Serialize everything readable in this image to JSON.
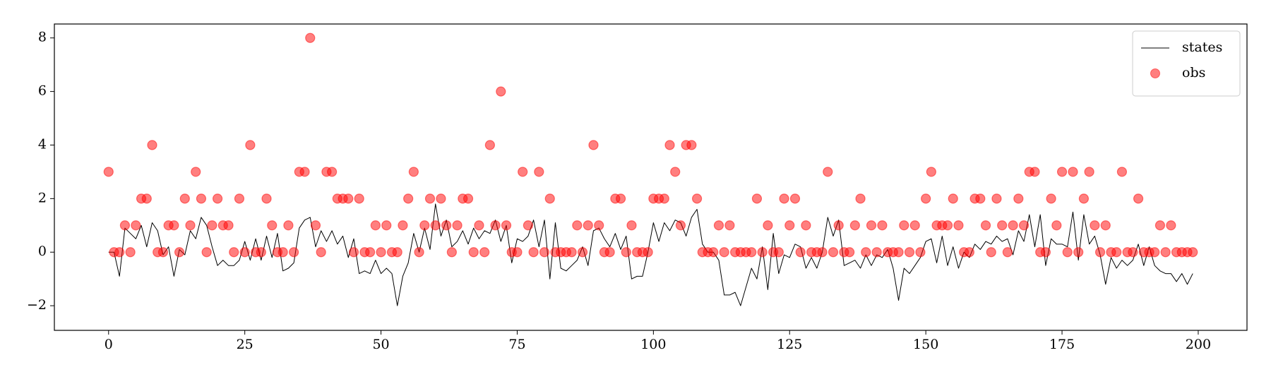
{
  "chart_data": {
    "type": "line",
    "x": [
      0,
      1,
      2,
      3,
      4,
      5,
      6,
      7,
      8,
      9,
      10,
      11,
      12,
      13,
      14,
      15,
      16,
      17,
      18,
      19,
      20,
      21,
      22,
      23,
      24,
      25,
      26,
      27,
      28,
      29,
      30,
      31,
      32,
      33,
      34,
      35,
      36,
      37,
      38,
      39,
      40,
      41,
      42,
      43,
      44,
      45,
      46,
      47,
      48,
      49,
      50,
      51,
      52,
      53,
      54,
      55,
      56,
      57,
      58,
      59,
      60,
      61,
      62,
      63,
      64,
      65,
      66,
      67,
      68,
      69,
      70,
      71,
      72,
      73,
      74,
      75,
      76,
      77,
      78,
      79,
      80,
      81,
      82,
      83,
      84,
      85,
      86,
      87,
      88,
      89,
      90,
      91,
      92,
      93,
      94,
      95,
      96,
      97,
      98,
      99,
      100,
      101,
      102,
      103,
      104,
      105,
      106,
      107,
      108,
      109,
      110,
      111,
      112,
      113,
      114,
      115,
      116,
      117,
      118,
      119,
      120,
      121,
      122,
      123,
      124,
      125,
      126,
      127,
      128,
      129,
      130,
      131,
      132,
      133,
      134,
      135,
      136,
      137,
      138,
      139,
      140,
      141,
      142,
      143,
      144,
      145,
      146,
      147,
      148,
      149,
      150,
      151,
      152,
      153,
      154,
      155,
      156,
      157,
      158,
      159,
      160,
      161,
      162,
      163,
      164,
      165,
      166,
      167,
      168,
      169,
      170,
      171,
      172,
      173,
      174,
      175,
      176,
      177,
      178,
      179,
      180,
      181,
      182,
      183,
      184,
      185,
      186,
      187,
      188,
      189,
      190,
      191,
      192,
      193,
      194,
      195,
      196,
      197,
      198,
      199
    ],
    "series": [
      {
        "name": "states",
        "type": "line",
        "color": "#000000",
        "values": [
          0,
          0,
          -0.9,
          0.9,
          0.7,
          0.5,
          1.0,
          0.2,
          1.1,
          0.8,
          -0.1,
          0.2,
          -0.9,
          0.1,
          -0.1,
          0.8,
          0.5,
          1.3,
          1.0,
          0.2,
          -0.5,
          -0.3,
          -0.5,
          -0.5,
          -0.3,
          0.4,
          -0.3,
          0.5,
          -0.3,
          0.6,
          -0.2,
          0.7,
          -0.7,
          -0.6,
          -0.4,
          0.9,
          1.2,
          1.3,
          0.2,
          0.8,
          0.4,
          0.8,
          0.3,
          0.6,
          -0.2,
          0.5,
          -0.8,
          -0.7,
          -0.8,
          -0.3,
          -0.8,
          -0.6,
          -0.8,
          -2.0,
          -0.9,
          -0.4,
          0.7,
          0.0,
          0.9,
          0.1,
          1.8,
          0.6,
          1.2,
          0.2,
          0.4,
          0.8,
          0.3,
          0.9,
          0.5,
          0.8,
          0.7,
          1.2,
          0.4,
          1.0,
          -0.4,
          0.5,
          0.4,
          0.6,
          1.2,
          0.2,
          1.2,
          -1.0,
          1.1,
          -0.6,
          -0.7,
          -0.5,
          -0.3,
          0.2,
          -0.5,
          0.8,
          0.9,
          0.5,
          0.2,
          0.7,
          0.1,
          0.6,
          -1.0,
          -0.9,
          -0.9,
          0.0,
          1.1,
          0.4,
          1.1,
          0.8,
          1.2,
          1.1,
          0.6,
          1.3,
          1.6,
          0.3,
          0.0,
          0.0,
          -0.3,
          -1.6,
          -1.6,
          -1.5,
          -2.0,
          -1.3,
          -0.6,
          -1.0,
          0.2,
          -1.4,
          0.7,
          -0.8,
          -0.1,
          -0.2,
          0.3,
          0.2,
          -0.6,
          -0.2,
          -0.6,
          0.0,
          1.3,
          0.6,
          1.2,
          -0.5,
          -0.4,
          -0.3,
          -0.6,
          -0.1,
          -0.5,
          -0.1,
          -0.2,
          0.1,
          -0.6,
          -1.8,
          -0.6,
          -0.8,
          -0.5,
          -0.2,
          0.4,
          0.5,
          -0.4,
          0.6,
          -0.5,
          0.2,
          -0.6,
          0.0,
          -0.2,
          0.3,
          0.1,
          0.4,
          0.3,
          0.6,
          0.4,
          0.5,
          -0.1,
          0.8,
          0.4,
          1.4,
          0.2,
          1.4,
          -0.5,
          0.5,
          0.3,
          0.3,
          0.2,
          1.5,
          -0.3,
          1.4,
          0.3,
          0.6,
          -0.1,
          -1.2,
          -0.2,
          -0.6,
          -0.3,
          -0.5,
          -0.3,
          0.3,
          -0.5,
          0.2,
          -0.5,
          -0.7,
          -0.8,
          -0.8,
          -1.1,
          -0.8,
          -1.2,
          -0.8
        ]
      },
      {
        "name": "obs",
        "type": "scatter",
        "color": "#ff0000",
        "values": [
          3,
          0,
          0,
          1,
          0,
          1,
          2,
          2,
          4,
          0,
          0,
          1,
          1,
          0,
          2,
          1,
          3,
          2,
          0,
          1,
          2,
          1,
          1,
          0,
          2,
          0,
          4,
          0,
          0,
          2,
          1,
          0,
          0,
          1,
          0,
          3,
          3,
          8,
          1,
          0,
          3,
          3,
          2,
          2,
          2,
          0,
          2,
          0,
          0,
          1,
          0,
          1,
          0,
          0,
          1,
          2,
          3,
          0,
          1,
          2,
          1,
          2,
          1,
          0,
          1,
          2,
          2,
          0,
          1,
          0,
          4,
          1,
          6,
          1,
          0,
          0,
          3,
          1,
          0,
          3,
          0,
          2,
          0,
          0,
          0,
          0,
          1,
          0,
          1,
          4,
          1,
          0,
          0,
          2,
          2,
          0,
          1,
          0,
          0,
          0,
          2,
          2,
          2,
          4,
          3,
          1,
          4,
          4,
          2,
          0,
          0,
          0,
          1,
          0,
          1,
          0,
          0,
          0,
          0,
          2,
          0,
          1,
          0,
          0,
          2,
          1,
          2,
          0,
          1,
          0,
          0,
          0,
          3,
          0,
          1,
          0,
          0,
          1,
          2,
          0,
          1,
          0,
          1,
          0,
          0,
          0,
          1,
          0,
          1,
          0,
          2,
          3,
          1,
          1,
          1,
          2,
          1,
          0,
          0,
          2,
          2,
          1,
          0,
          2,
          1,
          0,
          1,
          2,
          1,
          3,
          3,
          0,
          0,
          2,
          1,
          3,
          0,
          3,
          0,
          2,
          3,
          1,
          0,
          1,
          0,
          0,
          3,
          0,
          0,
          2,
          0,
          0,
          0,
          1,
          0,
          1,
          0,
          0,
          0,
          0
        ]
      }
    ],
    "xlim": [
      -9.95,
      208.95
    ],
    "xticks": [
      0,
      25,
      50,
      75,
      100,
      125,
      150,
      175,
      200
    ],
    "ylim": [
      -2.92,
      8.52
    ],
    "yticks": [
      {
        "value": -2,
        "label": "−2"
      },
      0,
      2,
      4,
      6,
      8
    ],
    "legend": "upper right"
  }
}
